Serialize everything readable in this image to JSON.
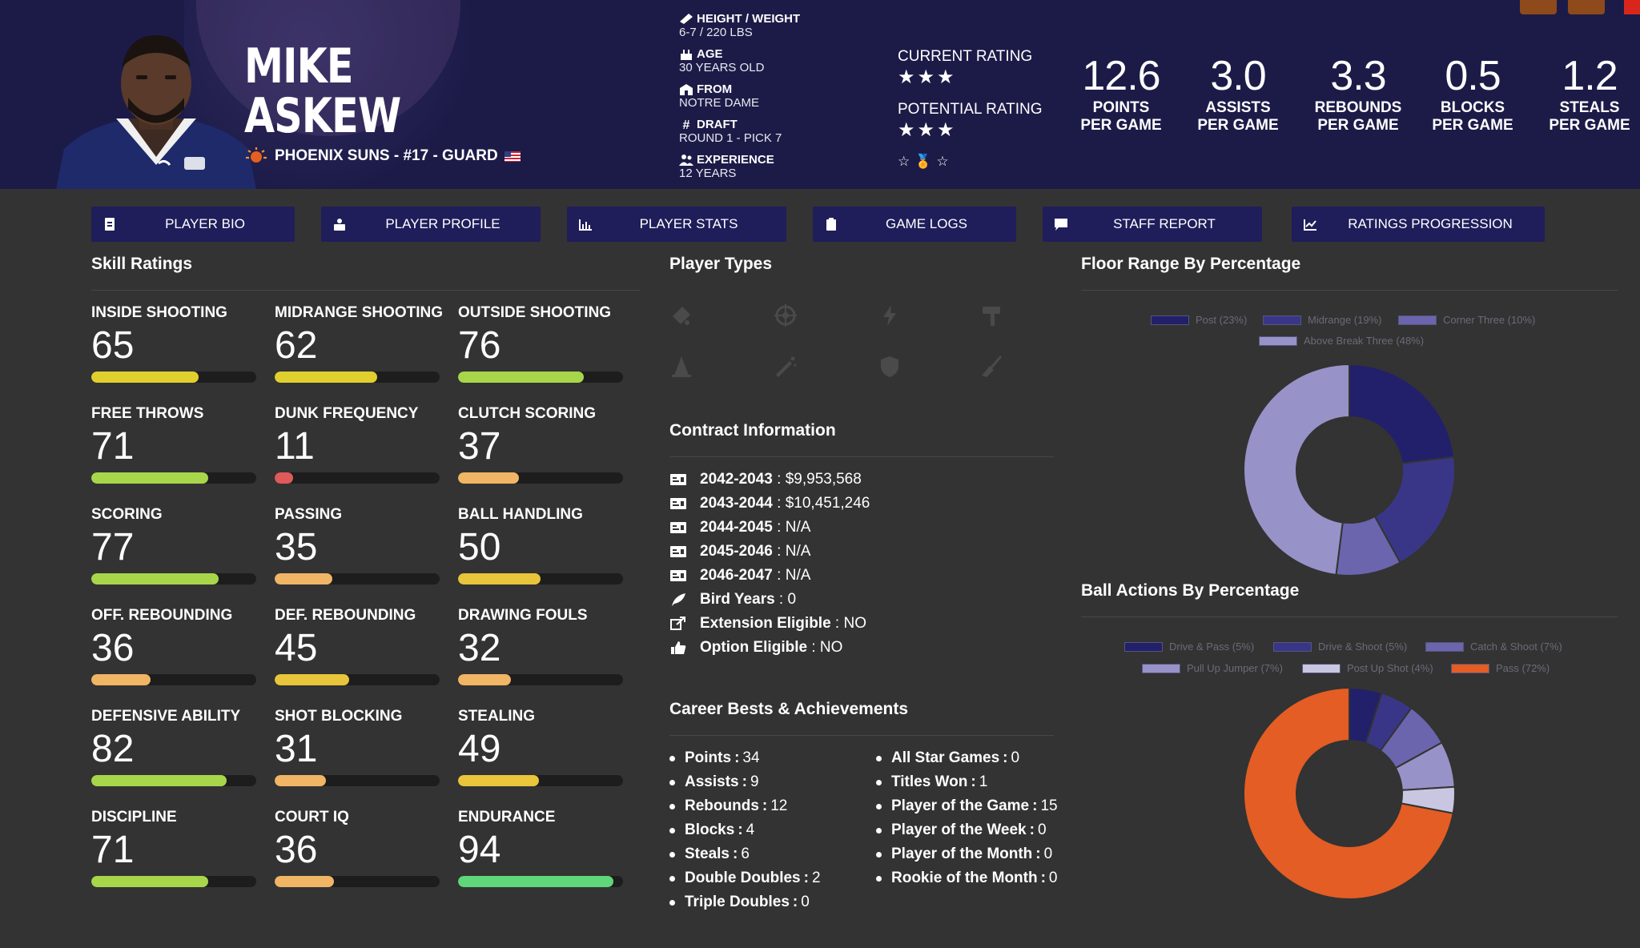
{
  "player": {
    "first_name": "MIKE",
    "last_name": "ASKEW",
    "team_line": "PHOENIX SUNS - #17 - GUARD"
  },
  "info": [
    {
      "label": "HEIGHT / WEIGHT",
      "value": "6-7 / 220 LBS",
      "icon": "ruler-icon"
    },
    {
      "label": "AGE",
      "value": "30 YEARS OLD",
      "icon": "cake-icon"
    },
    {
      "label": "FROM",
      "value": "NOTRE DAME",
      "icon": "school-icon"
    },
    {
      "label": "DRAFT",
      "value": "ROUND 1 - PICK 7",
      "icon": "hash-icon"
    },
    {
      "label": "EXPERIENCE",
      "value": "12 YEARS",
      "icon": "people-icon"
    }
  ],
  "ratings": {
    "current_label": "CURRENT RATING",
    "current_stars": "★★★",
    "potential_label": "POTENTIAL RATING",
    "potential_stars": "★★★",
    "badges": [
      "☆",
      "🏅",
      "☆"
    ]
  },
  "stats": [
    {
      "value": "12.6",
      "line1": "POINTS",
      "line2": "PER GAME"
    },
    {
      "value": "3.0",
      "line1": "ASSISTS",
      "line2": "PER GAME"
    },
    {
      "value": "3.3",
      "line1": "REBOUNDS",
      "line2": "PER GAME"
    },
    {
      "value": "0.5",
      "line1": "BLOCKS",
      "line2": "PER GAME"
    },
    {
      "value": "1.2",
      "line1": "STEALS",
      "line2": "PER GAME"
    }
  ],
  "tabs": [
    {
      "label": "PLAYER BIO",
      "icon": "id-card-icon"
    },
    {
      "label": "PLAYER PROFILE",
      "icon": "profile-icon"
    },
    {
      "label": "PLAYER STATS",
      "icon": "bar-chart-icon"
    },
    {
      "label": "GAME LOGS",
      "icon": "clipboard-icon"
    },
    {
      "label": "STAFF REPORT",
      "icon": "comment-icon"
    },
    {
      "label": "RATINGS PROGRESSION",
      "icon": "line-chart-icon"
    }
  ],
  "sections": {
    "skills": "Skill Ratings",
    "player_types": "Player Types",
    "contract": "Contract Information",
    "career": "Career Bests & Achievements",
    "floor": "Floor Range By Percentage",
    "ball": "Ball Actions By Percentage"
  },
  "skills": [
    {
      "label": "INSIDE SHOOTING",
      "value": 65,
      "color": "#e0cf2e"
    },
    {
      "label": "MIDRANGE SHOOTING",
      "value": 62,
      "color": "#e0cf2e"
    },
    {
      "label": "OUTSIDE SHOOTING",
      "value": 76,
      "color": "#a8d64b"
    },
    {
      "label": "FREE THROWS",
      "value": 71,
      "color": "#a8d64b"
    },
    {
      "label": "DUNK FREQUENCY",
      "value": 11,
      "color": "#e05a5a"
    },
    {
      "label": "CLUTCH SCORING",
      "value": 37,
      "color": "#f0b565"
    },
    {
      "label": "SCORING",
      "value": 77,
      "color": "#a8d64b"
    },
    {
      "label": "PASSING",
      "value": 35,
      "color": "#f0b565"
    },
    {
      "label": "BALL HANDLING",
      "value": 50,
      "color": "#e8c53a"
    },
    {
      "label": "OFF. REBOUNDING",
      "value": 36,
      "color": "#f0b565"
    },
    {
      "label": "DEF. REBOUNDING",
      "value": 45,
      "color": "#e8c53a"
    },
    {
      "label": "DRAWING FOULS",
      "value": 32,
      "color": "#f0b565"
    },
    {
      "label": "DEFENSIVE ABILITY",
      "value": 82,
      "color": "#a8d64b"
    },
    {
      "label": "SHOT BLOCKING",
      "value": 31,
      "color": "#f0b565"
    },
    {
      "label": "STEALING",
      "value": 49,
      "color": "#e8c53a"
    },
    {
      "label": "DISCIPLINE",
      "value": 71,
      "color": "#a8d64b"
    },
    {
      "label": "COURT IQ",
      "value": 36,
      "color": "#f0b565"
    },
    {
      "label": "ENDURANCE",
      "value": 94,
      "color": "#5fd67a"
    }
  ],
  "player_types": [
    "paint-icon",
    "target-icon",
    "bolt-icon",
    "hammer-icon",
    "cone-icon",
    "wand-icon",
    "shield-icon",
    "broom-icon"
  ],
  "contract": [
    {
      "key": "2042-2043",
      "value": "$9,953,568",
      "icon": "money-icon"
    },
    {
      "key": "2043-2044",
      "value": "$10,451,246",
      "icon": "money-icon"
    },
    {
      "key": "2044-2045",
      "value": "N/A",
      "icon": "money-icon"
    },
    {
      "key": "2045-2046",
      "value": "N/A",
      "icon": "money-icon"
    },
    {
      "key": "2046-2047",
      "value": "N/A",
      "icon": "money-icon"
    },
    {
      "key": "Bird Years",
      "value": "0",
      "icon": "feather-icon"
    },
    {
      "key": "Extension Eligible",
      "value": "NO",
      "icon": "external-icon"
    },
    {
      "key": "Option Eligible",
      "value": "NO",
      "icon": "thumbs-up-icon"
    }
  ],
  "career_left": [
    {
      "key": "Points",
      "value": "34"
    },
    {
      "key": "Assists",
      "value": "9"
    },
    {
      "key": "Rebounds",
      "value": "12"
    },
    {
      "key": "Blocks",
      "value": "4"
    },
    {
      "key": "Steals",
      "value": "6"
    },
    {
      "key": "Double Doubles",
      "value": "2"
    },
    {
      "key": "Triple Doubles",
      "value": "0"
    }
  ],
  "career_right": [
    {
      "key": "All Star Games",
      "value": "0"
    },
    {
      "key": "Titles Won",
      "value": "1"
    },
    {
      "key": "Player of the Game",
      "value": "15"
    },
    {
      "key": "Player of the Week",
      "value": "0"
    },
    {
      "key": "Player of the Month",
      "value": "0"
    },
    {
      "key": "Rookie of the Month",
      "value": "0"
    }
  ],
  "chart_data": [
    {
      "type": "pie",
      "title": "Floor Range By Percentage",
      "categories": [
        "Post",
        "Midrange",
        "Corner Three",
        "Above Break Three"
      ],
      "values": [
        23,
        19,
        10,
        48
      ],
      "legend_labels": [
        "Post (23%)",
        "Midrange (19%)",
        "Corner Three (10%)",
        "Above Break Three (48%)"
      ],
      "colors": [
        "#22206a",
        "#3a3687",
        "#6a65ad",
        "#9792c7"
      ],
      "legend": "top"
    },
    {
      "type": "pie",
      "title": "Ball Actions By Percentage",
      "categories": [
        "Drive & Pass",
        "Drive & Shoot",
        "Catch & Shoot",
        "Pull Up Jumper",
        "Post Up Shot",
        "Pass"
      ],
      "values": [
        5,
        5,
        7,
        7,
        4,
        72
      ],
      "legend_labels": [
        "Drive & Pass (5%)",
        "Drive & Shoot (5%)",
        "Catch & Shoot (7%)",
        "Pull Up Jumper (7%)",
        "Post Up Shot (4%)",
        "Pass (72%)"
      ],
      "colors": [
        "#22206a",
        "#3a3687",
        "#6a65ad",
        "#9792c7",
        "#c9c6e2",
        "#e35d24"
      ],
      "legend": "top"
    }
  ]
}
